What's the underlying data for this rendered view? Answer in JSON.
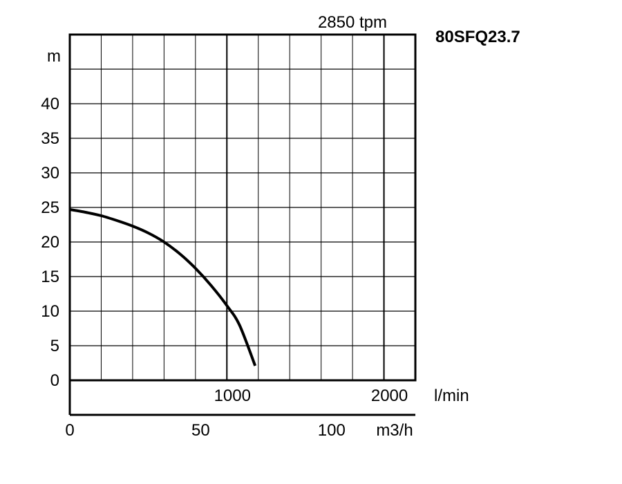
{
  "chart_data": {
    "type": "line",
    "title": "80SFQ23.7",
    "subtitle": "2850 tpm",
    "xlabel": "l/min",
    "ylabel": "m",
    "x2label": "m3/h",
    "xlim": [
      0,
      2200
    ],
    "ylim": [
      0,
      50
    ],
    "x_ticks": [
      1000,
      2000
    ],
    "x_tick_labels": [
      "1000",
      "2000"
    ],
    "x2_ticks": [
      0,
      50,
      100
    ],
    "x2_tick_labels": [
      "0",
      "50",
      "100"
    ],
    "y_ticks": [
      0,
      5,
      10,
      15,
      20,
      25,
      30,
      35,
      40
    ],
    "y_tick_labels": [
      "0",
      "5",
      "10",
      "15",
      "20",
      "25",
      "30",
      "35",
      "40"
    ],
    "grid": true,
    "series": [
      {
        "x": [
          0,
          100,
          200,
          300,
          400,
          500,
          600,
          700,
          800,
          900,
          1000,
          1080,
          1180
        ],
        "y": [
          24.7,
          24.3,
          23.8,
          23.1,
          22.3,
          21.3,
          20.0,
          18.3,
          16.2,
          13.7,
          10.8,
          8.0,
          2.1
        ]
      }
    ]
  }
}
